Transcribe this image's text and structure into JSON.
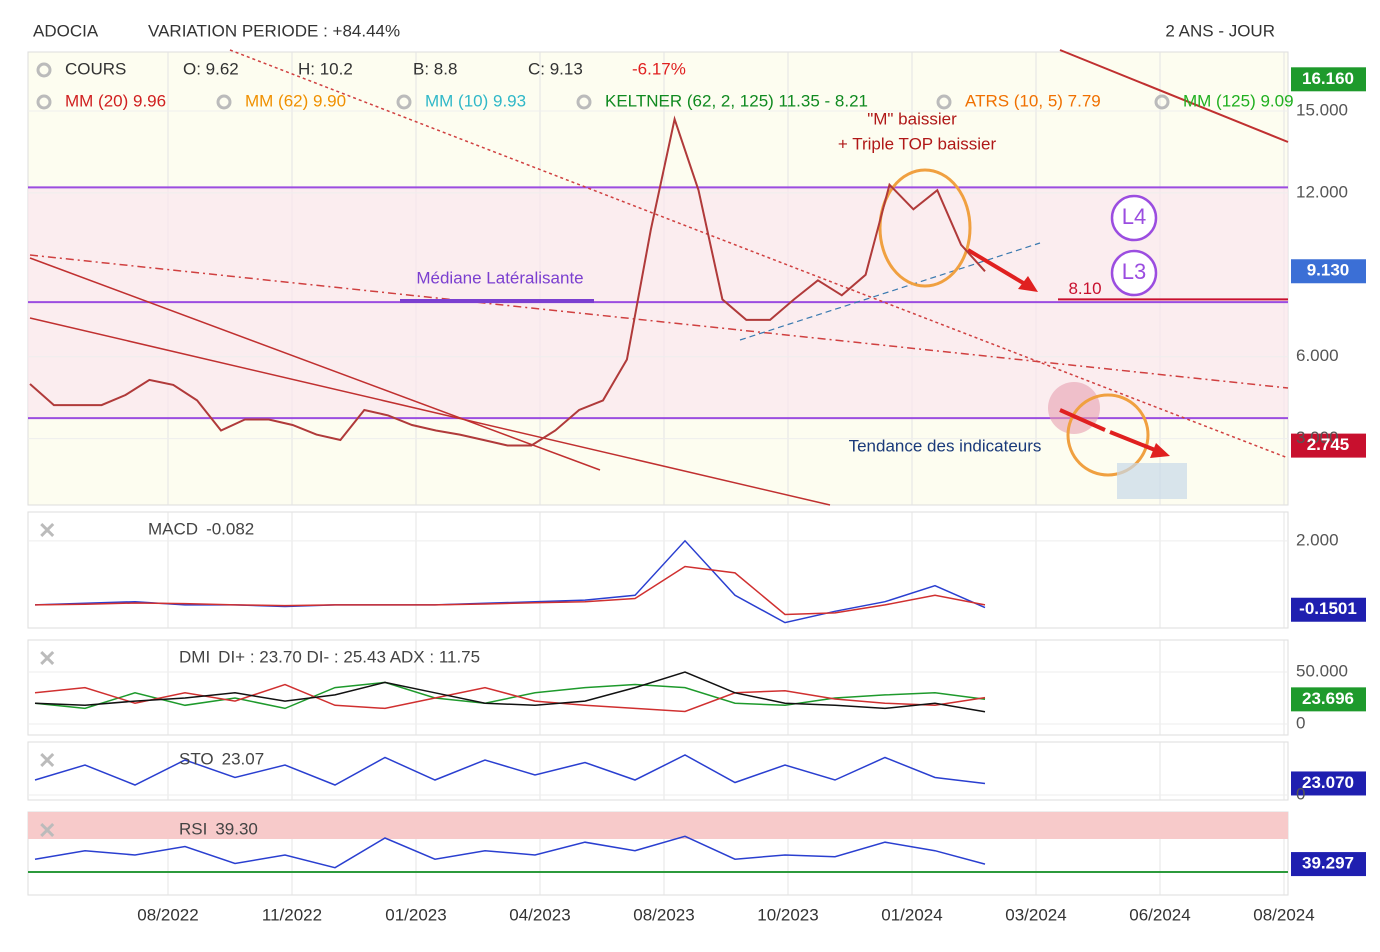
{
  "header": {
    "ticker": "ADOCIA",
    "variation": "VARIATION PERIODE : +84.44%",
    "period": "2 ANS - JOUR",
    "quote": [
      "COURS",
      "O: 9.62",
      "H: 10.2",
      "B: 8.8",
      "C: 9.13",
      "-6.17%"
    ],
    "indicators": [
      "MM (20) 9.96",
      "MM (62) 9.90",
      "MM (10) 9.93",
      "KELTNER (62, 2, 125) 11.35 - 8.21",
      "ATRS (10, 5) 7.79",
      "MM (125) 9.09"
    ]
  },
  "annotations": {
    "m_top": "\"M\" baissier",
    "triple_top": "+ Triple TOP baissier",
    "median": "Médiane Latéralisante",
    "l4": "L4",
    "l3": "L3",
    "trend": "Tendance des indicateurs"
  },
  "x_axis": {
    "labels": [
      "08/2022",
      "11/2022",
      "01/2023",
      "04/2023",
      "08/2023",
      "10/2023",
      "01/2024",
      "03/2024",
      "06/2024",
      "08/2024"
    ]
  },
  "chart_data": [
    {
      "type": "line",
      "name": "COURS",
      "ylim": [
        0.57,
        17.16
      ],
      "yticks": [
        {
          "value": 15,
          "label": "15.000"
        },
        {
          "value": 12,
          "label": "12.000"
        },
        {
          "value": 6,
          "label": "6.000"
        },
        {
          "value": 3,
          "label": "3.000"
        }
      ],
      "value_boxes": [
        {
          "value": 16.16,
          "label": "16.160",
          "color": "#1e9a2c"
        },
        {
          "value": 9.13,
          "label": "9.130",
          "color": "#3b6fd6"
        },
        {
          "value": 2.745,
          "label": "2.745",
          "color": "#c8102e"
        }
      ],
      "levels": [
        {
          "value": 12.2,
          "color": "#9b4de0"
        },
        {
          "value": 8.0,
          "color": "#9b4de0"
        },
        {
          "value": 3.75,
          "color": "#9b4de0"
        },
        {
          "value": 8.1,
          "label": "8.10",
          "color": "#c8102e"
        }
      ],
      "series": [
        {
          "name": "COURS",
          "color": "#b03a3a",
          "values": [
            5.0,
            4.23,
            4.23,
            4.23,
            4.6,
            5.15,
            4.97,
            4.4,
            3.3,
            3.7,
            3.7,
            3.5,
            3.15,
            2.95,
            4.05,
            3.85,
            3.5,
            3.3,
            3.15,
            2.95,
            2.75,
            2.75,
            3.3,
            4.05,
            4.4,
            5.9,
            10.65,
            14.7,
            12.1,
            8.1,
            7.35,
            7.35,
            8.1,
            8.8,
            8.25,
            9.0,
            12.3,
            11.4,
            12.1,
            10.1,
            9.13
          ]
        }
      ]
    },
    {
      "type": "line",
      "name": "MACD",
      "reading": "-0.082",
      "ylim": [
        -0.72,
        2.9
      ],
      "yticks": [
        {
          "value": 2,
          "label": "2.000"
        }
      ],
      "value_boxes": [
        {
          "value": -0.1501,
          "label": "-0.1501",
          "color": "#1f1fb0"
        }
      ],
      "series": [
        {
          "name": "MACD",
          "color": "#2a3fd0",
          "values": [
            0,
            0.05,
            0.1,
            0,
            0,
            -0.05,
            0,
            0,
            0,
            0.05,
            0.1,
            0.15,
            0.3,
            2.0,
            0.3,
            -0.55,
            -0.2,
            0.1,
            0.6,
            -0.08
          ]
        },
        {
          "name": "Signal",
          "color": "#d03030",
          "values": [
            0,
            0.02,
            0.06,
            0.04,
            0,
            -0.02,
            0,
            0,
            0,
            0.03,
            0.07,
            0.1,
            0.2,
            1.2,
            1.0,
            -0.3,
            -0.25,
            0,
            0.3,
            0
          ]
        }
      ]
    },
    {
      "type": "line",
      "name": "DMI",
      "reading": "DI+ : 23.70 DI- : 25.43 ADX : 11.75",
      "ylim": [
        -10.6,
        80.8
      ],
      "yticks": [
        {
          "value": 50,
          "label": "50.000"
        },
        0
      ],
      "value_boxes": [
        {
          "value": 23.696,
          "label": "23.696",
          "color": "#1e9a2c"
        }
      ],
      "series": [
        {
          "name": "DI+",
          "color": "#1e9a2c",
          "values": [
            20,
            15,
            30,
            18,
            25,
            15,
            35,
            40,
            25,
            20,
            30,
            35,
            38,
            35,
            20,
            18,
            25,
            28,
            30,
            23.7
          ]
        },
        {
          "name": "DI-",
          "color": "#d03030",
          "values": [
            30,
            35,
            20,
            30,
            22,
            38,
            18,
            15,
            25,
            35,
            22,
            18,
            15,
            12,
            30,
            32,
            24,
            20,
            18,
            25.43
          ]
        },
        {
          "name": "ADX",
          "color": "#111111",
          "values": [
            20,
            18,
            22,
            25,
            30,
            22,
            28,
            40,
            30,
            20,
            18,
            22,
            35,
            50,
            30,
            20,
            18,
            15,
            20,
            11.75
          ]
        }
      ]
    },
    {
      "type": "line",
      "name": "STO",
      "reading": "23.07",
      "ylim": [
        -10,
        106
      ],
      "yticks": [
        0
      ],
      "value_boxes": [
        {
          "value": 23.07,
          "label": "23.070",
          "color": "#1f1fb0"
        }
      ],
      "series": [
        {
          "name": "STO",
          "color": "#2a3fd0",
          "values": [
            30,
            60,
            20,
            70,
            35,
            60,
            20,
            75,
            30,
            70,
            40,
            65,
            30,
            80,
            25,
            60,
            30,
            75,
            35,
            23.07
          ]
        }
      ]
    },
    {
      "type": "line",
      "name": "RSI",
      "reading": "39.30",
      "ylim": [
        2.9,
        100.6
      ],
      "yticks": [],
      "zones": [
        {
          "value": 70,
          "color": "#f7caca"
        },
        {
          "value": 30,
          "color": "#2c9a3c"
        }
      ],
      "value_boxes": [
        {
          "value": 39.297,
          "label": "39.297",
          "color": "#1f1fb0"
        }
      ],
      "series": [
        {
          "name": "RSI",
          "color": "#2a3fd0",
          "values": [
            45,
            55,
            50,
            60,
            40,
            50,
            35,
            70,
            45,
            55,
            50,
            65,
            55,
            72,
            45,
            50,
            48,
            65,
            55,
            39.3
          ]
        }
      ]
    }
  ]
}
